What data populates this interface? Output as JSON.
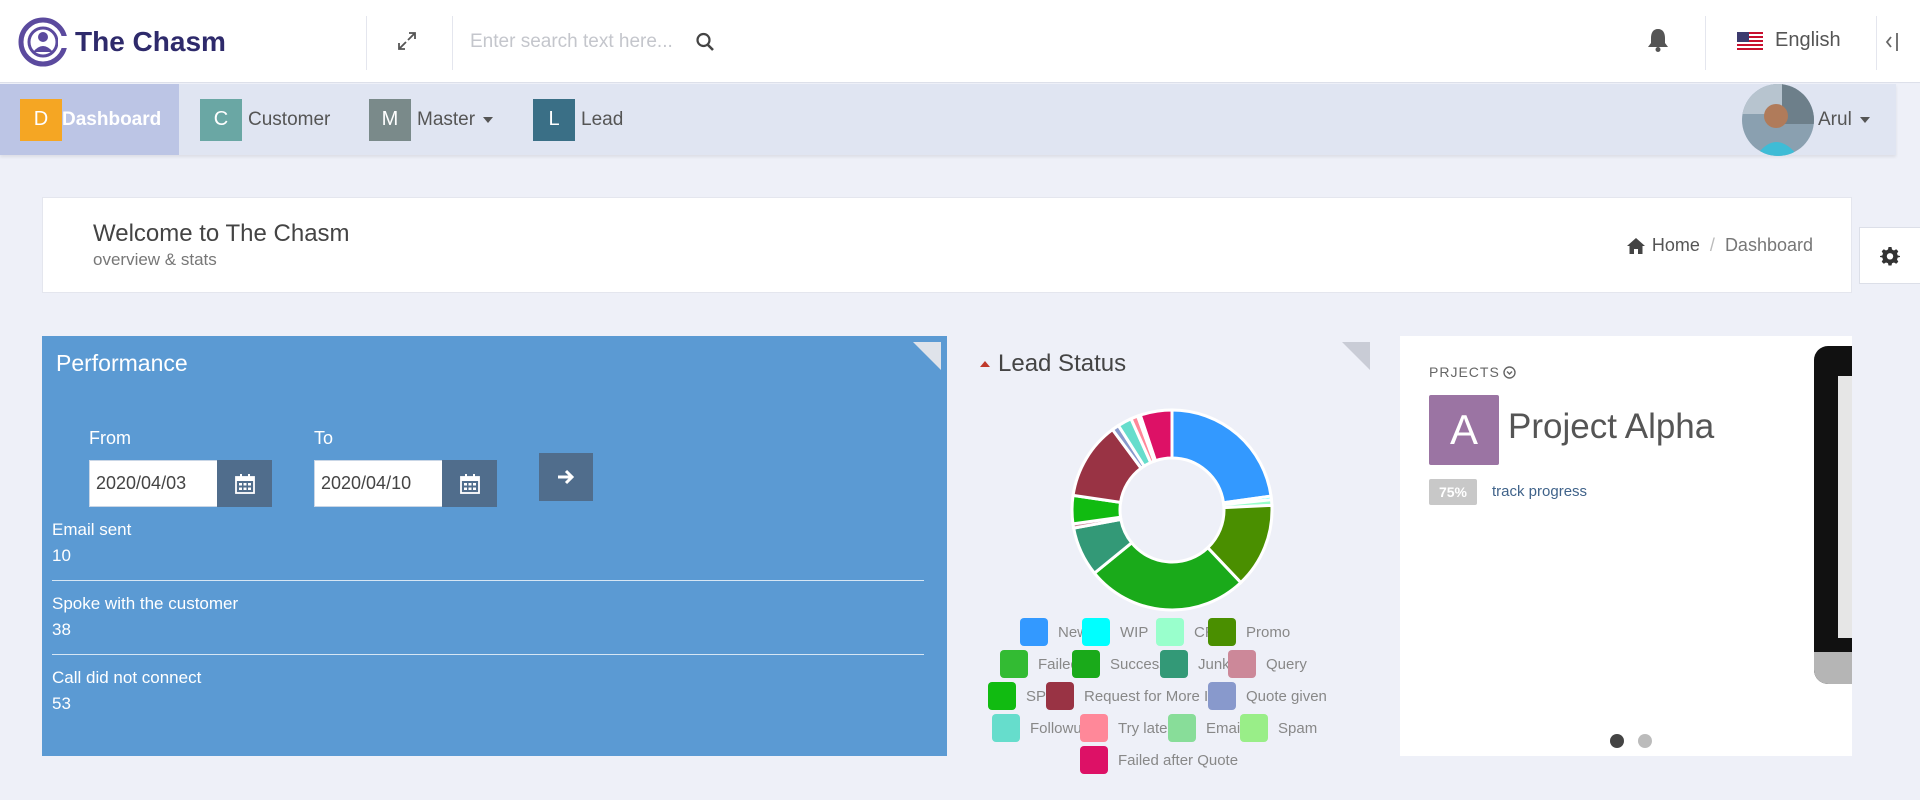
{
  "header": {
    "app_name": "The Chasm",
    "search_placeholder": "Enter search text here...",
    "language": "English"
  },
  "nav": {
    "items": [
      {
        "badge": "D",
        "label": "Dashboard",
        "color": "#f5a623"
      },
      {
        "badge": "C",
        "label": "Customer",
        "color": "#6aa7a4"
      },
      {
        "badge": "M",
        "label": "Master",
        "color": "#7a8a8a"
      },
      {
        "badge": "L",
        "label": "Lead",
        "color": "#3a6f86"
      }
    ],
    "user_name": "Arul"
  },
  "page": {
    "title": "Welcome to The Chasm",
    "subtitle": "overview & stats",
    "breadcrumb_home": "Home",
    "breadcrumb_sep": "/",
    "breadcrumb_current": "Dashboard"
  },
  "performance": {
    "title": "Performance",
    "from_label": "From",
    "to_label": "To",
    "from_value": "2020/04/03",
    "to_value": "2020/04/10",
    "stats": [
      {
        "label": "Email sent",
        "value": "10"
      },
      {
        "label": "Spoke with the customer",
        "value": "38"
      },
      {
        "label": "Call did not connect",
        "value": "53"
      }
    ]
  },
  "lead_status": {
    "title": "Lead Status",
    "legend": [
      {
        "label": "New",
        "color": "#3399ff"
      },
      {
        "label": "WIP",
        "color": "#00ffff"
      },
      {
        "label": "CR",
        "color": "#99ffcc"
      },
      {
        "label": "Promo",
        "color": "#4a8f00"
      },
      {
        "label": "Failed",
        "color": "#33bb33"
      },
      {
        "label": "Success",
        "color": "#1aaa1a"
      },
      {
        "label": "Junk",
        "color": "#339977"
      },
      {
        "label": "Query",
        "color": "#cc8899"
      },
      {
        "label": "SP",
        "color": "#11bb11"
      },
      {
        "label": "Request for More Info",
        "color": "#993344"
      },
      {
        "label": "Quote given",
        "color": "#8899cc"
      },
      {
        "label": "Followup",
        "color": "#66ddcc"
      },
      {
        "label": "Try later",
        "color": "#ff8899"
      },
      {
        "label": "Email",
        "color": "#88dd99"
      },
      {
        "label": "Spam",
        "color": "#99ee88"
      },
      {
        "label": "Failed after Quote",
        "color": "#dd1166"
      }
    ]
  },
  "chart_data": {
    "type": "pie",
    "categories": [
      "New",
      "WIP",
      "CR",
      "Promo",
      "Failed",
      "Success",
      "Junk",
      "Query",
      "SP",
      "Request for More Info",
      "Quote given",
      "Followup",
      "Try later",
      "Email",
      "Spam",
      "Failed after Quote"
    ],
    "values": [
      20,
      0.5,
      0.8,
      12,
      0,
      23,
      7,
      0.6,
      4,
      11,
      1,
      2,
      1,
      0.4,
      0,
      4.5
    ],
    "title": "Lead Status"
  },
  "projects": {
    "heading": "PRJECTS",
    "avatar_letter": "A",
    "name": "Project Alpha",
    "progress": "75%",
    "progress_value": 75,
    "link": "track progress"
  }
}
